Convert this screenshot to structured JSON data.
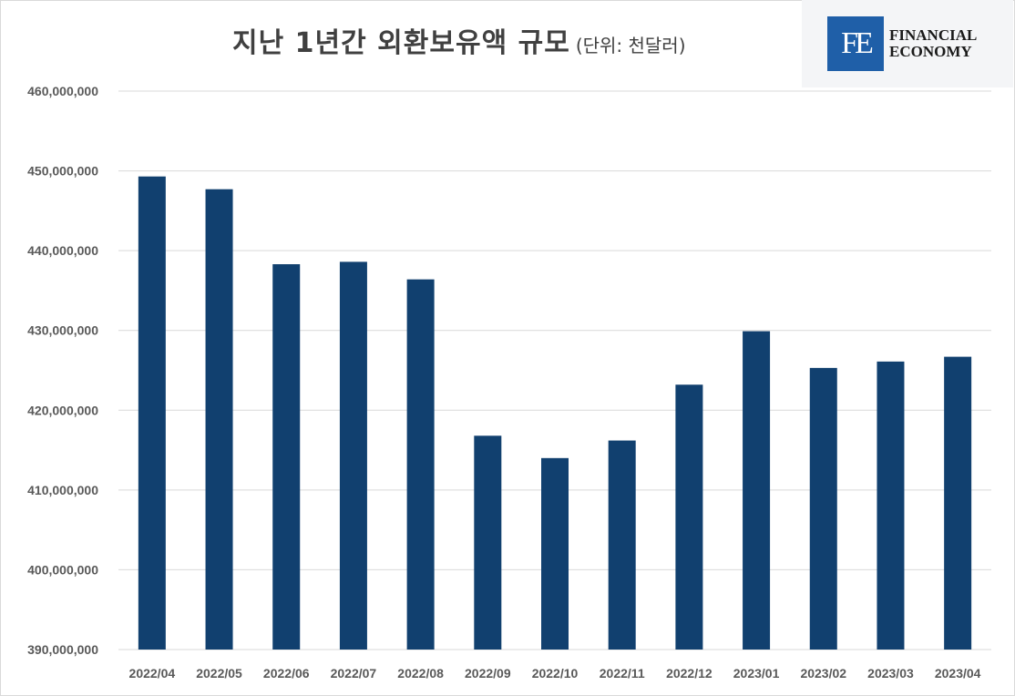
{
  "chart_data": {
    "type": "bar",
    "title": "지난 1년간 외환보유액  규모",
    "unit_note": "(단위: 천달러)",
    "xlabel": "",
    "ylabel": "",
    "categories": [
      "2022/04",
      "2022/05",
      "2022/06",
      "2022/07",
      "2022/08",
      "2022/09",
      "2022/10",
      "2022/11",
      "2022/12",
      "2023/01",
      "2023/02",
      "2023/03",
      "2023/04"
    ],
    "values": [
      449300000,
      447700000,
      438300000,
      438600000,
      436400000,
      416800000,
      414000000,
      416200000,
      423200000,
      429900000,
      425300000,
      426100000,
      426700000
    ],
    "ylim": [
      390000000,
      460000000
    ],
    "yticks": [
      390000000,
      400000000,
      410000000,
      420000000,
      430000000,
      440000000,
      450000000,
      460000000
    ],
    "ytick_labels": [
      "390,000,000",
      "400,000,000",
      "410,000,000",
      "420,000,000",
      "430,000,000",
      "440,000,000",
      "450,000,000",
      "460,000,000"
    ],
    "grid": true,
    "legend": "none",
    "bar_color": "#11406f"
  },
  "logo": {
    "mark": "FE",
    "line1": "FINANCIAL",
    "line2": "ECONOMY",
    "color": "#1f5fa8"
  }
}
